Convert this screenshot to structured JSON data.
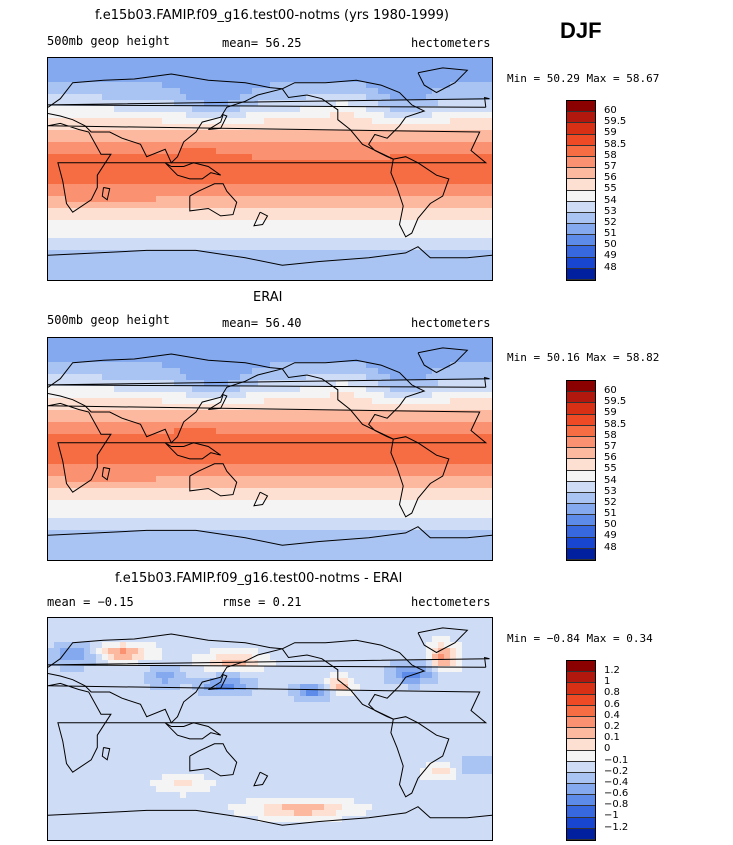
{
  "season": "DJF",
  "panels": [
    {
      "title": "f.e15b03.FAMIP.f09_g16.test00-notms (yrs 1980-1999)",
      "left_label": "500mb geop height",
      "center_label": "mean=  56.25",
      "right_label": "hectometers",
      "minmax": "Min =  50.29 Max =  58.67",
      "kind": "abs"
    },
    {
      "title": "ERAI",
      "left_label": "500mb geop height",
      "center_label": "mean=  56.40",
      "right_label": "hectometers",
      "minmax": "Min =  50.16 Max =  58.82",
      "kind": "abs"
    },
    {
      "title": "f.e15b03.FAMIP.f09_g16.test00-notms - ERAI",
      "left_label": "mean =  −0.15",
      "center_label": "rmse =   0.21",
      "right_label": "hectometers",
      "minmax": "Min =  −0.84 Max =   0.34",
      "kind": "diff"
    }
  ],
  "colorbar_abs": {
    "labels": [
      "60",
      "59.5",
      "59",
      "58.5",
      "58",
      "57",
      "56",
      "55",
      "54",
      "53",
      "52",
      "51",
      "50",
      "49",
      "48"
    ],
    "colors": [
      "#8b0000",
      "#b2180e",
      "#d73014",
      "#ef4a26",
      "#f66d44",
      "#fa9272",
      "#fcb9a0",
      "#fde0d2",
      "#f4f4f4",
      "#cfdcf5",
      "#a9c4f2",
      "#84a9ee",
      "#5c8bea",
      "#3868e0",
      "#1846d0",
      "#00209f"
    ]
  },
  "colorbar_diff": {
    "labels": [
      "1.2",
      "1",
      "0.8",
      "0.6",
      "0.4",
      "0.2",
      "0.1",
      "0",
      "−0.1",
      "−0.2",
      "−0.4",
      "−0.6",
      "−0.8",
      "−1",
      "−1.2"
    ],
    "colors": [
      "#8b0000",
      "#b2180e",
      "#d73014",
      "#ef4a26",
      "#f66d44",
      "#fa9272",
      "#fcb9a0",
      "#fde0d2",
      "#f4f4f4",
      "#cfdcf5",
      "#a9c4f2",
      "#84a9ee",
      "#5c8bea",
      "#3868e0",
      "#1846d0",
      "#00209f"
    ]
  }
}
